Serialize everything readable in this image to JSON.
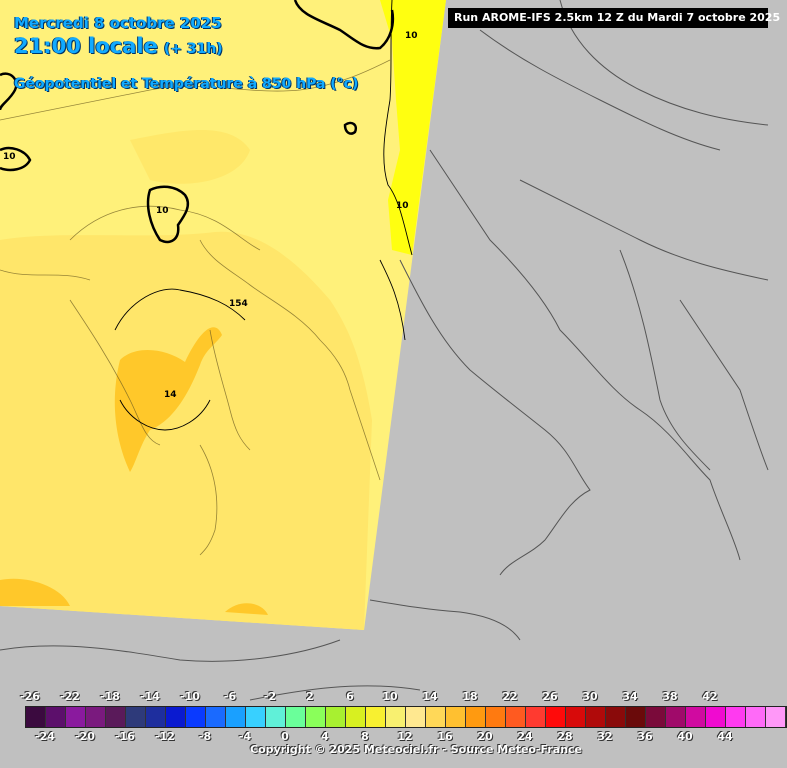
{
  "header": {
    "date": "Mercredi 8 octobre 2025",
    "local_time": "21:00 locale",
    "lead_time": "(+ 31h)",
    "parameter": "Géopotentiel et Température à 850 hPa (°c)"
  },
  "run_banner": "Run AROME-IFS 2.5km 12 Z du Mardi 7 octobre 2025",
  "contour_labels": [
    "10",
    "10",
    "10",
    "10",
    "154",
    "14"
  ],
  "legend": {
    "top_labels": [
      "-26",
      "-22",
      "-18",
      "-14",
      "-10",
      "-6",
      "-2",
      "2",
      "6",
      "10",
      "14",
      "18",
      "22",
      "26",
      "30",
      "34",
      "38",
      "42"
    ],
    "bottom_labels": [
      "-24",
      "-20",
      "-16",
      "-12",
      "-8",
      "-4",
      "0",
      "4",
      "8",
      "12",
      "16",
      "20",
      "24",
      "28",
      "32",
      "36",
      "40",
      "44"
    ],
    "colors": [
      "#3b0a3f",
      "#5c0f6b",
      "#8a1a9e",
      "#7a1a7e",
      "#5a1a5a",
      "#2e3a7a",
      "#1e2e9e",
      "#0a1ad0",
      "#0a3aff",
      "#1a6aff",
      "#1aa0ff",
      "#38d0ff",
      "#60f0d8",
      "#6aff9a",
      "#8aff5a",
      "#a8f030",
      "#d8f020",
      "#f8f030",
      "#f8f070",
      "#ffe890",
      "#ffd858",
      "#ffc030",
      "#ff9a10",
      "#ff7a10",
      "#ff5a20",
      "#ff3a30",
      "#ff0a0a",
      "#d80a0a",
      "#b00a0a",
      "#8a0a0a",
      "#6a0a0a",
      "#7a0a3a",
      "#a00a6a",
      "#d00aa0",
      "#f00ad0",
      "#ff3af0",
      "#ff6af8",
      "#ff98f8"
    ]
  },
  "copyright": "Copyright © 2025 Meteociel.fr - Source Meteo-France"
}
